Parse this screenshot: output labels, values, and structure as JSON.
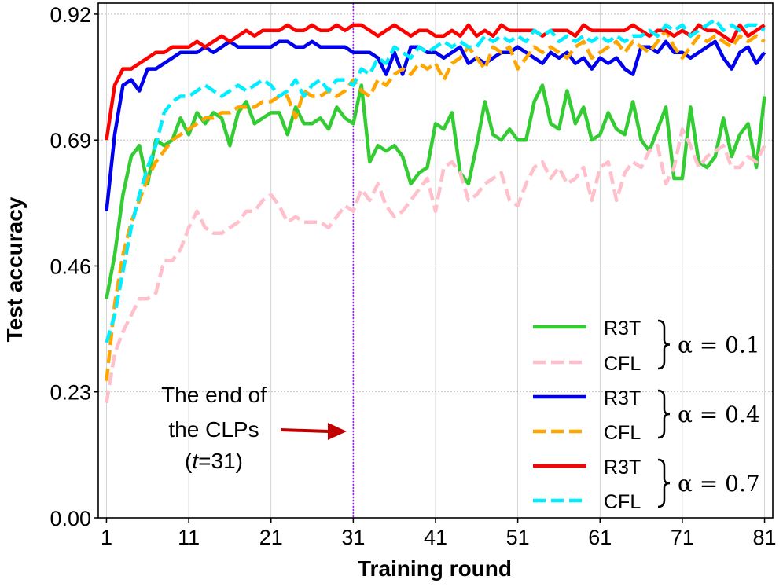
{
  "chart_data": {
    "type": "line",
    "title": "",
    "xlabel": "Training round",
    "ylabel": "Test accuracy",
    "xlim": [
      0,
      82
    ],
    "ylim": [
      0,
      0.94
    ],
    "xticks": [
      1,
      11,
      21,
      31,
      41,
      51,
      61,
      71,
      81
    ],
    "xtick_labels": [
      "1",
      "11",
      "21",
      "31",
      "41",
      "51",
      "61",
      "71",
      "81"
    ],
    "yticks": [
      0,
      0.23,
      0.46,
      0.69,
      0.92
    ],
    "ytick_labels": [
      "0.00",
      "0.23",
      "0.46",
      "0.69",
      "0.92"
    ],
    "grid": true,
    "legend_position": "bottom-right",
    "vline": {
      "x": 31,
      "color": "#a020f0"
    },
    "annotation": {
      "lines": [
        "The end of",
        "the CLPs"
      ],
      "t_label": "t",
      "t_rest": "=31)",
      "t_open": "(",
      "arrow_color": "#c00000"
    },
    "legend_groups": [
      {
        "alpha_label": "α = 0.1",
        "entries": [
          "R3T",
          "CFL"
        ]
      },
      {
        "alpha_label": "α = 0.4",
        "entries": [
          "R3T",
          "CFL"
        ]
      },
      {
        "alpha_label": "α = 0.7",
        "entries": [
          "R3T",
          "CFL"
        ]
      }
    ],
    "series": [
      {
        "name": "R3T (α = 0.1)",
        "color": "#33cc33",
        "dash": "solid",
        "x": [
          1,
          2,
          3,
          4,
          5,
          6,
          7,
          8,
          9,
          10,
          11,
          12,
          13,
          14,
          15,
          16,
          17,
          18,
          19,
          20,
          21,
          22,
          23,
          24,
          25,
          26,
          27,
          28,
          29,
          30,
          31,
          32,
          33,
          34,
          35,
          36,
          37,
          38,
          39,
          40,
          41,
          42,
          43,
          44,
          45,
          46,
          47,
          48,
          49,
          50,
          51,
          52,
          53,
          54,
          55,
          56,
          57,
          58,
          59,
          60,
          61,
          62,
          63,
          64,
          65,
          66,
          67,
          68,
          69,
          70,
          71,
          72,
          73,
          74,
          75,
          76,
          77,
          78,
          79,
          80,
          81
        ],
        "values": [
          0.4,
          0.48,
          0.59,
          0.66,
          0.68,
          0.61,
          0.69,
          0.68,
          0.69,
          0.73,
          0.7,
          0.74,
          0.72,
          0.74,
          0.73,
          0.68,
          0.74,
          0.76,
          0.72,
          0.73,
          0.74,
          0.74,
          0.7,
          0.75,
          0.72,
          0.72,
          0.73,
          0.71,
          0.75,
          0.73,
          0.72,
          0.79,
          0.65,
          0.68,
          0.67,
          0.68,
          0.66,
          0.61,
          0.63,
          0.64,
          0.72,
          0.71,
          0.74,
          0.63,
          0.61,
          0.68,
          0.76,
          0.7,
          0.69,
          0.71,
          0.69,
          0.69,
          0.76,
          0.79,
          0.72,
          0.71,
          0.78,
          0.72,
          0.75,
          0.69,
          0.7,
          0.74,
          0.71,
          0.7,
          0.76,
          0.69,
          0.67,
          0.71,
          0.75,
          0.62,
          0.62,
          0.75,
          0.65,
          0.64,
          0.66,
          0.73,
          0.66,
          0.7,
          0.72,
          0.64,
          0.77
        ]
      },
      {
        "name": "CFL (α = 0.1)",
        "color": "#ffc0cb",
        "dash": "dashed",
        "x": [
          1,
          2,
          3,
          4,
          5,
          6,
          7,
          8,
          9,
          10,
          11,
          12,
          13,
          14,
          15,
          16,
          17,
          18,
          19,
          20,
          21,
          22,
          23,
          24,
          25,
          26,
          27,
          28,
          29,
          30,
          31,
          32,
          33,
          34,
          35,
          36,
          37,
          38,
          39,
          40,
          41,
          42,
          43,
          44,
          45,
          46,
          47,
          48,
          49,
          50,
          51,
          52,
          53,
          54,
          55,
          56,
          57,
          58,
          59,
          60,
          61,
          62,
          63,
          64,
          65,
          66,
          67,
          68,
          69,
          70,
          71,
          72,
          73,
          74,
          75,
          76,
          77,
          78,
          79,
          80,
          81
        ],
        "values": [
          0.21,
          0.3,
          0.34,
          0.37,
          0.4,
          0.4,
          0.41,
          0.47,
          0.47,
          0.49,
          0.53,
          0.56,
          0.53,
          0.52,
          0.52,
          0.53,
          0.54,
          0.56,
          0.56,
          0.58,
          0.59,
          0.57,
          0.54,
          0.55,
          0.54,
          0.54,
          0.54,
          0.53,
          0.55,
          0.57,
          0.56,
          0.6,
          0.58,
          0.61,
          0.57,
          0.55,
          0.56,
          0.58,
          0.6,
          0.62,
          0.56,
          0.64,
          0.65,
          0.63,
          0.58,
          0.59,
          0.61,
          0.62,
          0.63,
          0.58,
          0.57,
          0.61,
          0.64,
          0.65,
          0.62,
          0.64,
          0.61,
          0.62,
          0.64,
          0.58,
          0.64,
          0.65,
          0.58,
          0.63,
          0.65,
          0.64,
          0.67,
          0.68,
          0.61,
          0.64,
          0.71,
          0.68,
          0.64,
          0.66,
          0.67,
          0.68,
          0.64,
          0.64,
          0.66,
          0.65,
          0.68
        ]
      },
      {
        "name": "R3T (α = 0.4)",
        "color": "#0000ee",
        "dash": "solid",
        "x": [
          1,
          2,
          3,
          4,
          5,
          6,
          7,
          8,
          9,
          10,
          11,
          12,
          13,
          14,
          15,
          16,
          17,
          18,
          19,
          20,
          21,
          22,
          23,
          24,
          25,
          26,
          27,
          28,
          29,
          30,
          31,
          32,
          33,
          34,
          35,
          36,
          37,
          38,
          39,
          40,
          41,
          42,
          43,
          44,
          45,
          46,
          47,
          48,
          49,
          50,
          51,
          52,
          53,
          54,
          55,
          56,
          57,
          58,
          59,
          60,
          61,
          62,
          63,
          64,
          65,
          66,
          67,
          68,
          69,
          70,
          71,
          72,
          73,
          74,
          75,
          76,
          77,
          78,
          79,
          80,
          81
        ],
        "values": [
          0.56,
          0.7,
          0.79,
          0.8,
          0.78,
          0.82,
          0.82,
          0.83,
          0.84,
          0.85,
          0.85,
          0.85,
          0.86,
          0.85,
          0.86,
          0.87,
          0.86,
          0.86,
          0.86,
          0.86,
          0.86,
          0.87,
          0.87,
          0.86,
          0.86,
          0.87,
          0.86,
          0.86,
          0.86,
          0.86,
          0.85,
          0.85,
          0.85,
          0.84,
          0.81,
          0.85,
          0.81,
          0.86,
          0.86,
          0.85,
          0.85,
          0.84,
          0.85,
          0.86,
          0.83,
          0.84,
          0.83,
          0.84,
          0.85,
          0.85,
          0.86,
          0.85,
          0.84,
          0.83,
          0.85,
          0.84,
          0.85,
          0.83,
          0.84,
          0.82,
          0.84,
          0.83,
          0.84,
          0.82,
          0.81,
          0.86,
          0.86,
          0.85,
          0.87,
          0.85,
          0.85,
          0.84,
          0.85,
          0.86,
          0.87,
          0.84,
          0.82,
          0.85,
          0.86,
          0.83,
          0.85
        ]
      },
      {
        "name": "CFL (α = 0.4)",
        "color": "#ffa500",
        "dash": "dashed",
        "x": [
          1,
          2,
          3,
          4,
          5,
          6,
          7,
          8,
          9,
          10,
          11,
          12,
          13,
          14,
          15,
          16,
          17,
          18,
          19,
          20,
          21,
          22,
          23,
          24,
          25,
          26,
          27,
          28,
          29,
          30,
          31,
          32,
          33,
          34,
          35,
          36,
          37,
          38,
          39,
          40,
          41,
          42,
          43,
          44,
          45,
          46,
          47,
          48,
          49,
          50,
          51,
          52,
          53,
          54,
          55,
          56,
          57,
          58,
          59,
          60,
          61,
          62,
          63,
          64,
          65,
          66,
          67,
          68,
          69,
          70,
          71,
          72,
          73,
          74,
          75,
          76,
          77,
          78,
          79,
          80,
          81
        ],
        "values": [
          0.25,
          0.39,
          0.48,
          0.54,
          0.58,
          0.62,
          0.65,
          0.67,
          0.69,
          0.7,
          0.71,
          0.72,
          0.73,
          0.73,
          0.74,
          0.74,
          0.75,
          0.75,
          0.75,
          0.76,
          0.76,
          0.77,
          0.77,
          0.73,
          0.78,
          0.77,
          0.77,
          0.78,
          0.77,
          0.78,
          0.8,
          0.78,
          0.77,
          0.8,
          0.79,
          0.81,
          0.82,
          0.81,
          0.83,
          0.82,
          0.83,
          0.8,
          0.83,
          0.84,
          0.86,
          0.84,
          0.82,
          0.86,
          0.85,
          0.86,
          0.82,
          0.84,
          0.86,
          0.85,
          0.86,
          0.85,
          0.84,
          0.86,
          0.87,
          0.84,
          0.85,
          0.86,
          0.87,
          0.85,
          0.87,
          0.86,
          0.85,
          0.87,
          0.89,
          0.86,
          0.84,
          0.86,
          0.88,
          0.87,
          0.88,
          0.87,
          0.86,
          0.88,
          0.87,
          0.88,
          0.87
        ]
      },
      {
        "name": "R3T (α = 0.7)",
        "color": "#ff0000",
        "dash": "solid",
        "x": [
          1,
          2,
          3,
          4,
          5,
          6,
          7,
          8,
          9,
          10,
          11,
          12,
          13,
          14,
          15,
          16,
          17,
          18,
          19,
          20,
          21,
          22,
          23,
          24,
          25,
          26,
          27,
          28,
          29,
          30,
          31,
          32,
          33,
          34,
          35,
          36,
          37,
          38,
          39,
          40,
          41,
          42,
          43,
          44,
          45,
          46,
          47,
          48,
          49,
          50,
          51,
          52,
          53,
          54,
          55,
          56,
          57,
          58,
          59,
          60,
          61,
          62,
          63,
          64,
          65,
          66,
          67,
          68,
          69,
          70,
          71,
          72,
          73,
          74,
          75,
          76,
          77,
          78,
          79,
          80,
          81
        ],
        "values": [
          0.69,
          0.79,
          0.82,
          0.82,
          0.83,
          0.84,
          0.85,
          0.85,
          0.86,
          0.86,
          0.86,
          0.87,
          0.86,
          0.87,
          0.88,
          0.87,
          0.88,
          0.89,
          0.88,
          0.89,
          0.89,
          0.89,
          0.9,
          0.89,
          0.89,
          0.9,
          0.89,
          0.89,
          0.9,
          0.89,
          0.9,
          0.9,
          0.89,
          0.88,
          0.89,
          0.9,
          0.89,
          0.88,
          0.89,
          0.89,
          0.88,
          0.88,
          0.89,
          0.88,
          0.9,
          0.88,
          0.89,
          0.88,
          0.9,
          0.89,
          0.89,
          0.89,
          0.89,
          0.88,
          0.89,
          0.89,
          0.89,
          0.88,
          0.9,
          0.89,
          0.89,
          0.89,
          0.89,
          0.89,
          0.9,
          0.89,
          0.88,
          0.89,
          0.89,
          0.88,
          0.89,
          0.88,
          0.9,
          0.89,
          0.89,
          0.88,
          0.87,
          0.9,
          0.88,
          0.89,
          0.9
        ]
      },
      {
        "name": "CFL (α = 0.7)",
        "color": "#00eeff",
        "dash": "dashed",
        "x": [
          1,
          2,
          3,
          4,
          5,
          6,
          7,
          8,
          9,
          10,
          11,
          12,
          13,
          14,
          15,
          16,
          17,
          18,
          19,
          20,
          21,
          22,
          23,
          24,
          25,
          26,
          27,
          28,
          29,
          30,
          31,
          32,
          33,
          34,
          35,
          36,
          37,
          38,
          39,
          40,
          41,
          42,
          43,
          44,
          45,
          46,
          47,
          48,
          49,
          50,
          51,
          52,
          53,
          54,
          55,
          56,
          57,
          58,
          59,
          60,
          61,
          62,
          63,
          64,
          65,
          66,
          67,
          68,
          69,
          70,
          71,
          72,
          73,
          74,
          75,
          76,
          77,
          78,
          79,
          80,
          81
        ],
        "values": [
          0.32,
          0.37,
          0.45,
          0.53,
          0.59,
          0.64,
          0.68,
          0.74,
          0.76,
          0.77,
          0.77,
          0.78,
          0.79,
          0.78,
          0.77,
          0.78,
          0.79,
          0.78,
          0.79,
          0.8,
          0.79,
          0.77,
          0.78,
          0.8,
          0.77,
          0.79,
          0.8,
          0.78,
          0.8,
          0.8,
          0.79,
          0.82,
          0.81,
          0.84,
          0.83,
          0.86,
          0.85,
          0.84,
          0.86,
          0.85,
          0.86,
          0.87,
          0.86,
          0.87,
          0.86,
          0.86,
          0.88,
          0.87,
          0.88,
          0.87,
          0.88,
          0.87,
          0.89,
          0.88,
          0.89,
          0.87,
          0.88,
          0.87,
          0.88,
          0.87,
          0.88,
          0.87,
          0.88,
          0.87,
          0.88,
          0.88,
          0.89,
          0.88,
          0.9,
          0.89,
          0.9,
          0.88,
          0.89,
          0.9,
          0.91,
          0.89,
          0.9,
          0.89,
          0.9,
          0.9,
          0.89
        ]
      }
    ]
  }
}
